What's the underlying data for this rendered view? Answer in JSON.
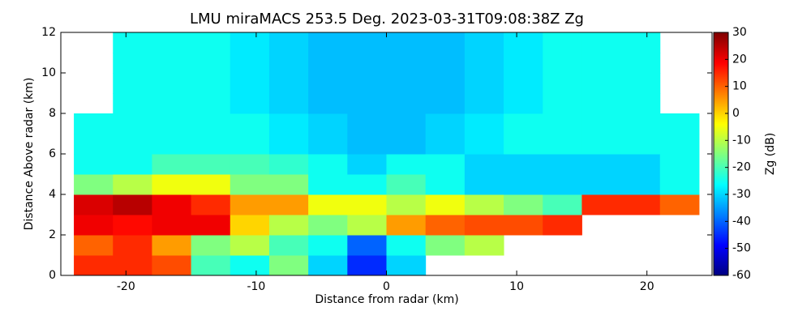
{
  "chart_data": {
    "type": "heatmap",
    "title": "LMU miraMACS 253.5 Deg. 2023-03-31T09:08:38Z  Zg",
    "xlabel": "Distance from radar (km)",
    "ylabel": "Distance Above radar  (km)",
    "colorbar_label": "Zg (dB)",
    "cmap": "jet",
    "clim": [
      -60,
      30
    ],
    "cticks": [
      -60,
      -50,
      -40,
      -30,
      -20,
      -10,
      0,
      10,
      20,
      30
    ],
    "xlim": [
      -25,
      25
    ],
    "xticks": [
      -20,
      -10,
      0,
      10,
      20
    ],
    "ylim": [
      0,
      12
    ],
    "yticks": [
      0,
      2,
      4,
      6,
      8,
      10,
      12
    ],
    "x_edges": [
      -24,
      -21,
      -18,
      -15,
      -12,
      -9,
      -6,
      -3,
      0,
      3,
      6,
      9,
      12,
      15,
      18,
      21,
      24
    ],
    "y_edges": [
      0,
      1,
      2,
      3,
      4,
      5,
      6,
      7,
      8,
      9,
      10,
      11,
      12
    ],
    "z": [
      [
        15,
        15,
        12,
        -20,
        -25,
        -15,
        -30,
        -45,
        -30,
        null,
        null,
        null,
        null,
        null,
        null,
        null
      ],
      [
        10,
        15,
        5,
        -15,
        -10,
        -20,
        -25,
        -40,
        -25,
        -15,
        -10,
        null,
        null,
        null,
        null,
        null
      ],
      [
        20,
        18,
        20,
        20,
        0,
        -10,
        -15,
        -10,
        5,
        10,
        12,
        12,
        15,
        null,
        null,
        null
      ],
      [
        22,
        25,
        20,
        15,
        5,
        5,
        -5,
        -5,
        -10,
        -5,
        -10,
        -15,
        -20,
        15,
        15,
        10
      ],
      [
        -15,
        -10,
        -5,
        -5,
        -15,
        -15,
        -25,
        -25,
        -20,
        -25,
        -30,
        -30,
        -30,
        -30,
        -30,
        -25
      ],
      [
        -25,
        -25,
        -20,
        -20,
        -20,
        -22,
        -25,
        -30,
        -25,
        -25,
        -30,
        -30,
        -30,
        -30,
        -30,
        -25
      ],
      [
        -25,
        -25,
        -25,
        -25,
        -25,
        -28,
        -30,
        -32,
        -32,
        -30,
        -28,
        -25,
        -25,
        -25,
        -25,
        -25
      ],
      [
        -25,
        -25,
        -25,
        -25,
        -25,
        -28,
        -30,
        -32,
        -32,
        -30,
        -28,
        -25,
        -25,
        -25,
        -25,
        -25
      ],
      [
        null,
        -25,
        -25,
        -25,
        -28,
        -30,
        -32,
        -32,
        -32,
        -32,
        -30,
        -28,
        -25,
        -25,
        -25,
        null
      ],
      [
        null,
        -25,
        -25,
        -25,
        -28,
        -30,
        -32,
        -32,
        -32,
        -32,
        -30,
        -28,
        -25,
        -25,
        -25,
        null
      ],
      [
        null,
        -25,
        -25,
        -25,
        -28,
        -30,
        -32,
        -32,
        -32,
        -32,
        -30,
        -28,
        -25,
        -25,
        -25,
        null
      ],
      [
        null,
        -25,
        -25,
        -25,
        -28,
        -30,
        -32,
        -32,
        -32,
        -32,
        -30,
        -28,
        -25,
        -25,
        -25,
        null
      ]
    ]
  }
}
